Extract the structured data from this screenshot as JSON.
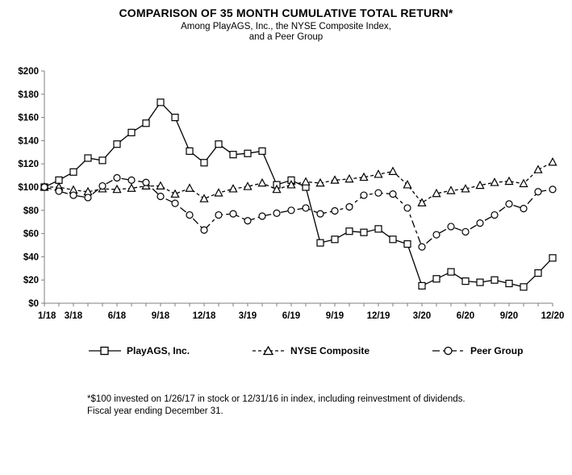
{
  "title": "COMPARISON OF 35 MONTH CUMULATIVE TOTAL RETURN*",
  "subtitle_line1": "Among PlayAGS,  Inc., the NYSE Composite Index,",
  "subtitle_line2": "and a Peer Group",
  "footnote_line1": "*$100 invested on 1/26/17 in stock or 12/31/16 in index, including reinvestment of dividends.",
  "footnote_line2": "Fiscal year ending December 31.",
  "colors": {
    "series": "#000000",
    "axis": "#7f7f7f",
    "text": "#000000",
    "background": "#ffffff"
  },
  "chart_data": {
    "type": "line",
    "title": "COMPARISON OF 35 MONTH CUMULATIVE TOTAL RETURN*",
    "subtitle": "Among PlayAGS, Inc., the NYSE Composite Index, and a Peer Group",
    "xlabel": "",
    "ylabel": "",
    "ylim": [
      0,
      200
    ],
    "ytick_step": 20,
    "ytick_prefix": "$",
    "grid": false,
    "legend_position": "bottom",
    "n_points": 36,
    "x_tick_labels": [
      "1/18",
      "3/18",
      "6/18",
      "9/18",
      "12/18",
      "3/19",
      "6/19",
      "9/19",
      "12/19",
      "3/20",
      "6/20",
      "9/20",
      "12/20"
    ],
    "x_tick_indices": [
      0,
      2,
      5,
      8,
      11,
      14,
      17,
      20,
      23,
      26,
      29,
      32,
      35
    ],
    "series": [
      {
        "name": "PlayAGS, Inc.",
        "marker": "square",
        "line_style": "solid",
        "values": [
          100,
          106,
          113,
          125,
          123,
          137,
          147,
          155,
          173,
          160,
          131,
          121,
          137,
          128,
          129,
          131,
          102,
          106,
          100,
          52,
          55,
          62,
          61,
          64,
          55,
          51,
          15,
          21,
          27,
          19,
          18,
          20,
          17,
          14,
          26,
          39
        ]
      },
      {
        "name": "NYSE Composite",
        "marker": "triangle",
        "line_style": "dashed",
        "values": [
          100,
          100,
          97.5,
          96,
          98.5,
          98,
          99,
          101,
          101,
          94,
          99,
          90,
          95,
          98.5,
          100.5,
          103.5,
          98,
          102,
          104.5,
          103.5,
          106,
          107,
          108.5,
          111,
          113.5,
          102,
          86.5,
          94.5,
          97,
          98.5,
          101.5,
          104,
          105,
          103,
          115,
          121.5
        ]
      },
      {
        "name": "Peer Group",
        "marker": "circle",
        "line_style": "dashdot",
        "values": [
          100,
          96.5,
          93,
          91,
          101,
          108,
          106,
          104,
          92,
          86,
          76,
          63,
          76,
          77,
          71,
          75,
          77.5,
          80,
          82,
          77,
          79.5,
          83,
          93,
          95,
          94,
          82,
          48.5,
          59,
          66,
          61.5,
          69,
          76,
          85.5,
          81.5,
          96,
          98
        ]
      }
    ]
  }
}
